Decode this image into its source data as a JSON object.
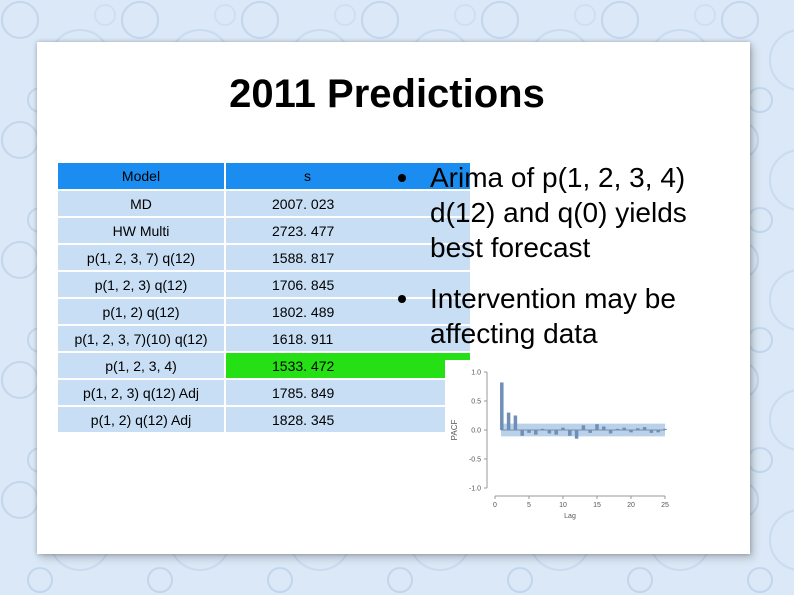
{
  "colors": {
    "header": "#1c8df0",
    "row": "#c7def5",
    "best": "#25e015",
    "bar": "#6f8fb8",
    "band": "#b9d1e9"
  },
  "title": "2011 Predictions",
  "table": {
    "headers": [
      "Model",
      "s"
    ],
    "rows": [
      {
        "model": "MD",
        "s": "2007. 023"
      },
      {
        "model": "HW Multi",
        "s": "2723. 477"
      },
      {
        "model": "p(1, 2, 3, 7)  q(12)",
        "s": "1588. 817"
      },
      {
        "model": "p(1, 2, 3) q(12)",
        "s": "1706. 845"
      },
      {
        "model": "p(1, 2) q(12)",
        "s": "1802. 489"
      },
      {
        "model": "p(1, 2, 3, 7)(10) q(12)",
        "s": "1618. 911"
      },
      {
        "model": "p(1, 2, 3, 4)",
        "s": "1533. 472",
        "best": true
      },
      {
        "model": "p(1, 2, 3) q(12) Adj",
        "s": "1785. 849"
      },
      {
        "model": "p(1, 2) q(12) Adj",
        "s": "1828. 345"
      }
    ]
  },
  "bullets": [
    "Arima of p(1, 2, 3, 4) d(12) and q(0) yields best forecast",
    "Intervention may be affecting data"
  ],
  "chart_data": {
    "type": "bar",
    "ylabel": "PACF",
    "xlabel": "Lag",
    "ylim": [
      -1.0,
      1.0
    ],
    "xlim": [
      0,
      25
    ],
    "yticks": [
      "1.0",
      "0.5",
      "0.0",
      "-0.5",
      "-1.0"
    ],
    "xticks": [
      "0",
      "5",
      "10",
      "15",
      "20",
      "25"
    ],
    "confidence_band": [
      -0.11,
      0.11
    ],
    "x": [
      1,
      2,
      3,
      4,
      5,
      6,
      7,
      8,
      9,
      10,
      11,
      12,
      13,
      14,
      15,
      16,
      17,
      18,
      19,
      20,
      21,
      22,
      23,
      24,
      25
    ],
    "values": [
      0.82,
      0.3,
      0.25,
      -0.1,
      -0.05,
      -0.08,
      0.02,
      -0.06,
      -0.08,
      0.04,
      -0.1,
      -0.15,
      0.08,
      -0.05,
      0.1,
      0.06,
      -0.06,
      0.02,
      0.04,
      -0.04,
      0.03,
      0.05,
      -0.05,
      -0.04,
      0.02
    ]
  }
}
